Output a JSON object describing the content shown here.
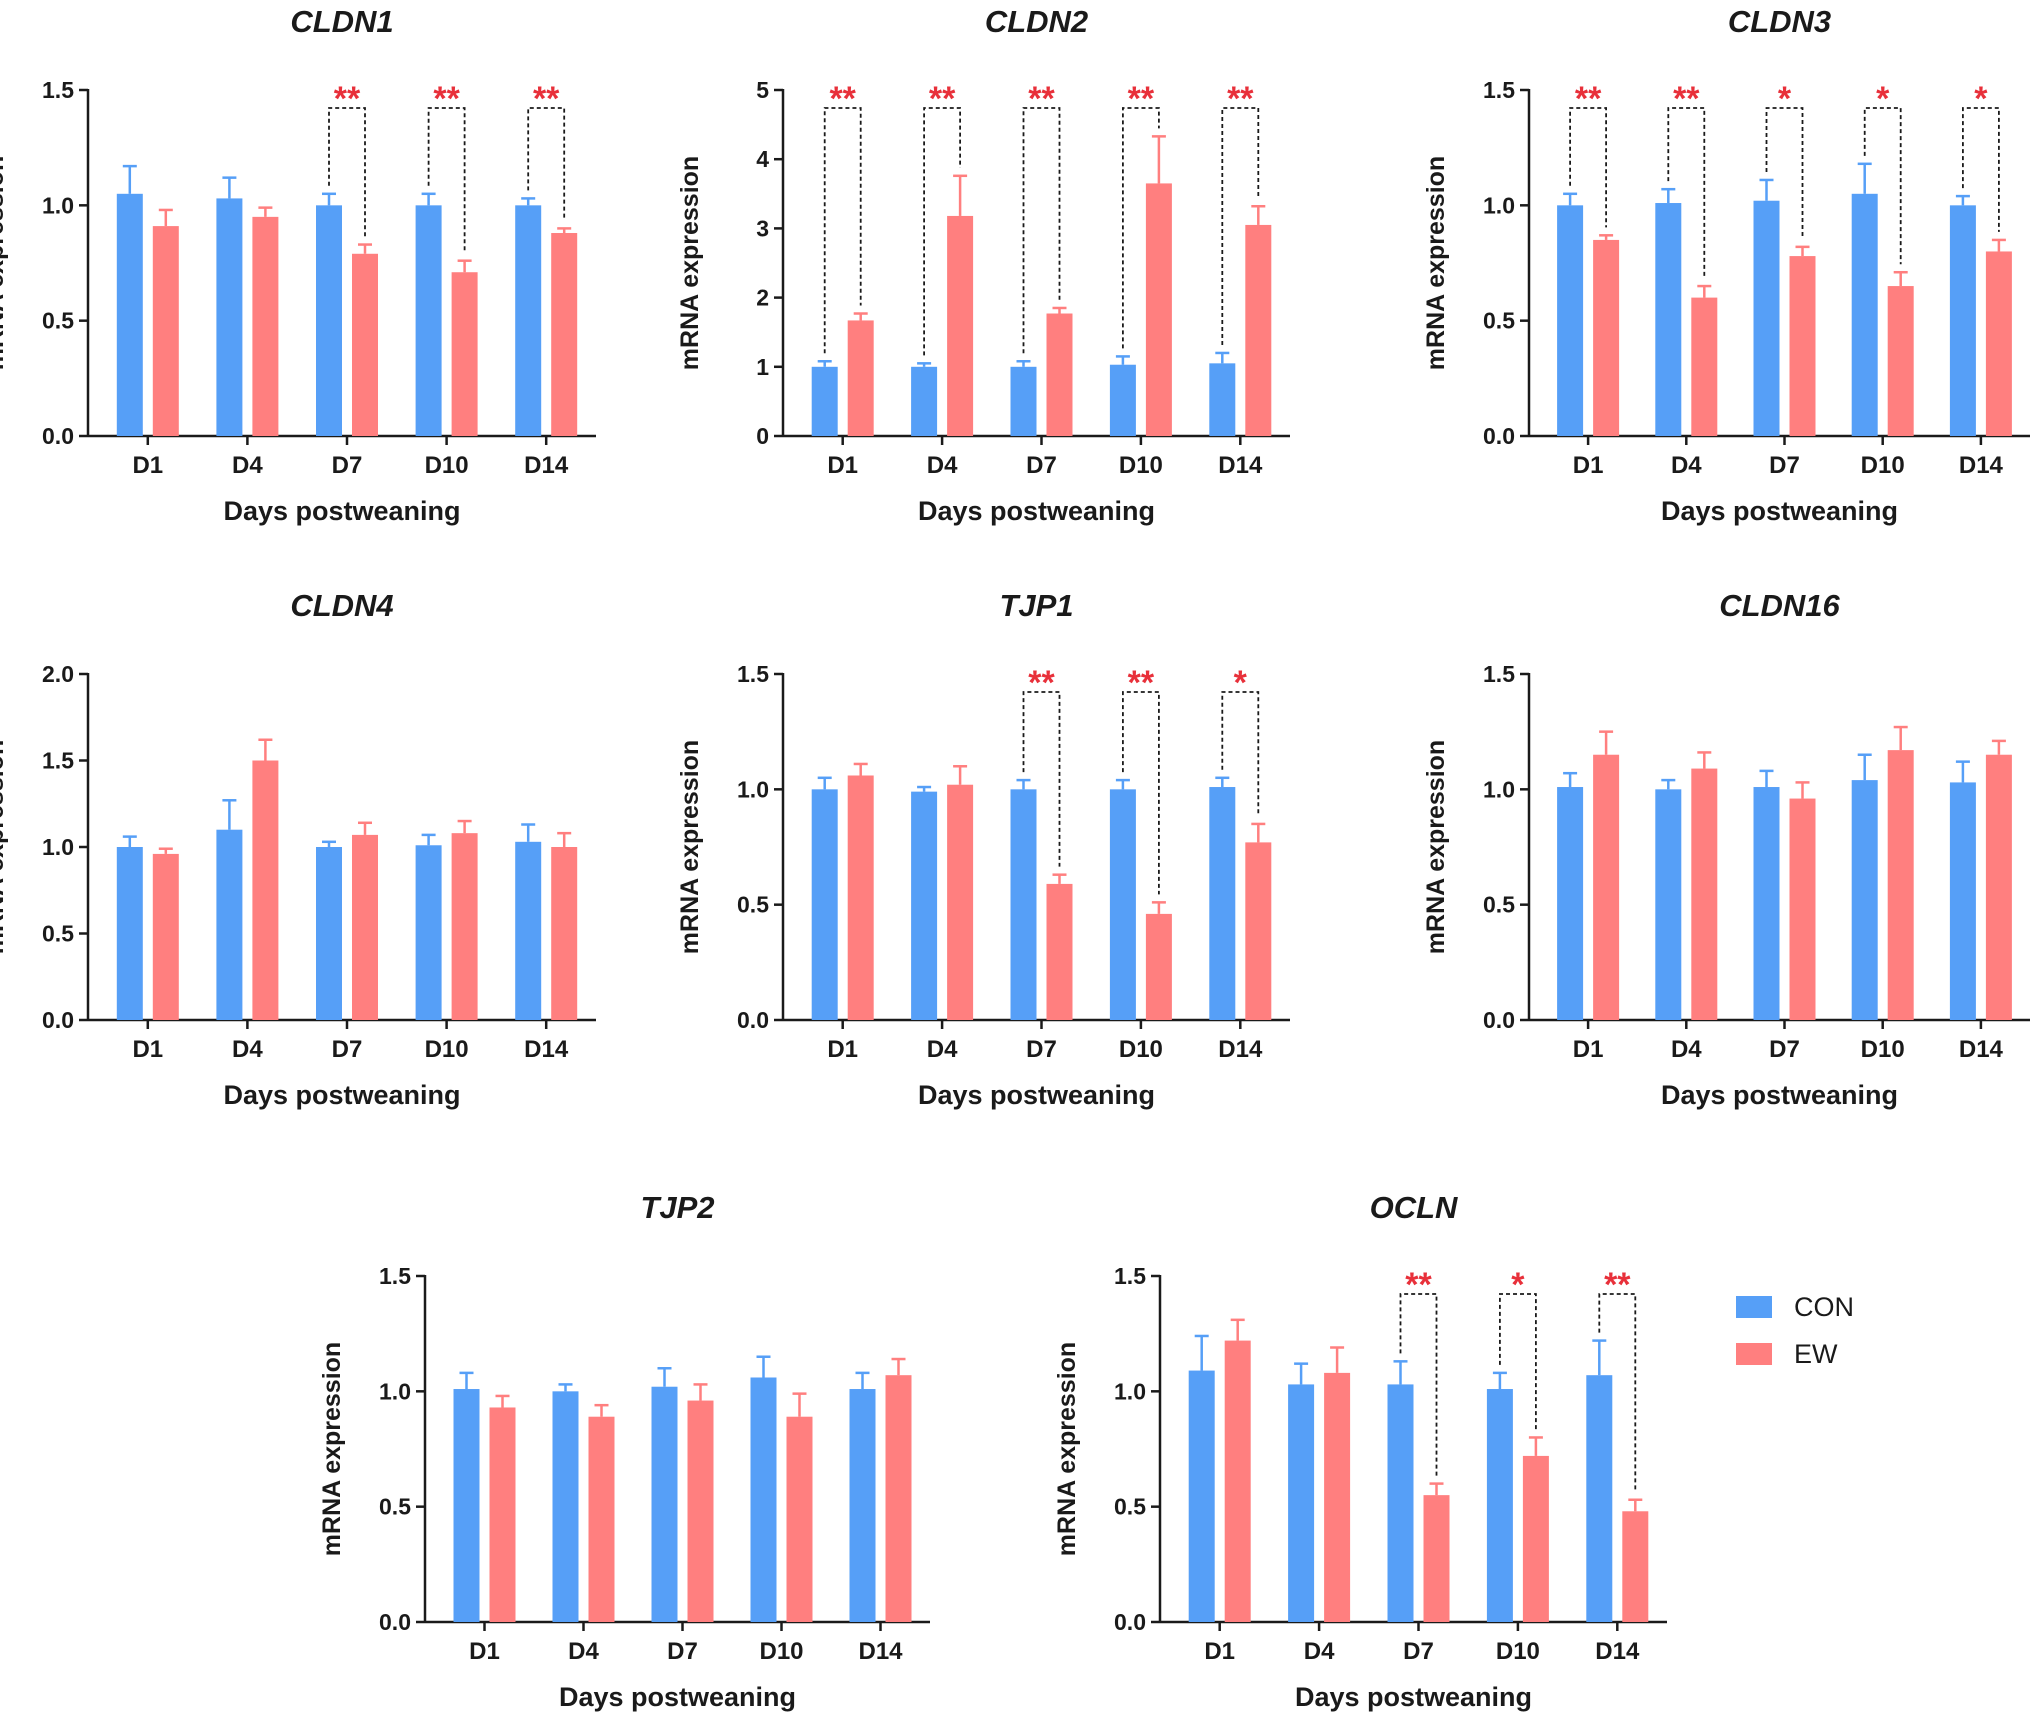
{
  "colors": {
    "con": "#569ff7",
    "ew": "#ff7f7f",
    "star": "#e8303a",
    "axis": "#1a1a1a"
  },
  "legend": {
    "items": [
      {
        "key": "con",
        "label": "CON"
      },
      {
        "key": "ew",
        "label": "EW"
      }
    ]
  },
  "chart_data": [
    {
      "type": "bar",
      "title": "CLDN1",
      "xlabel": "Days postweaning",
      "ylabel": "mRNA expression",
      "categories": [
        "D1",
        "D4",
        "D7",
        "D10",
        "D14"
      ],
      "ylim": [
        0,
        1.5
      ],
      "yticks": [
        "0.0",
        "0.5",
        "1.0",
        "1.5"
      ],
      "series": [
        {
          "name": "CON",
          "values": [
            1.05,
            1.03,
            1.0,
            1.0,
            1.0
          ],
          "errors": [
            0.12,
            0.09,
            0.05,
            0.05,
            0.03
          ]
        },
        {
          "name": "EW",
          "values": [
            0.91,
            0.95,
            0.79,
            0.71,
            0.88
          ],
          "errors": [
            0.07,
            0.04,
            0.04,
            0.05,
            0.02
          ]
        }
      ],
      "significance": [
        "",
        "",
        "**",
        "**",
        "**"
      ]
    },
    {
      "type": "bar",
      "title": "CLDN2",
      "xlabel": "Days postweaning",
      "ylabel": "mRNA expression",
      "categories": [
        "D1",
        "D4",
        "D7",
        "D10",
        "D14"
      ],
      "ylim": [
        0,
        5
      ],
      "yticks": [
        "0",
        "1",
        "2",
        "3",
        "4",
        "5"
      ],
      "series": [
        {
          "name": "CON",
          "values": [
            1.0,
            1.0,
            1.0,
            1.03,
            1.05
          ],
          "errors": [
            0.08,
            0.05,
            0.08,
            0.12,
            0.15
          ]
        },
        {
          "name": "EW",
          "values": [
            1.67,
            3.18,
            1.77,
            3.65,
            3.05
          ],
          "errors": [
            0.1,
            0.58,
            0.08,
            0.68,
            0.27
          ]
        }
      ],
      "significance": [
        "**",
        "**",
        "**",
        "**",
        "**"
      ]
    },
    {
      "type": "bar",
      "title": "CLDN3",
      "xlabel": "Days postweaning",
      "ylabel": "mRNA expression",
      "categories": [
        "D1",
        "D4",
        "D7",
        "D10",
        "D14"
      ],
      "ylim": [
        0,
        1.5
      ],
      "yticks": [
        "0.0",
        "0.5",
        "1.0",
        "1.5"
      ],
      "series": [
        {
          "name": "CON",
          "values": [
            1.0,
            1.01,
            1.02,
            1.05,
            1.0
          ],
          "errors": [
            0.05,
            0.06,
            0.09,
            0.13,
            0.04
          ]
        },
        {
          "name": "EW",
          "values": [
            0.85,
            0.6,
            0.78,
            0.65,
            0.8
          ],
          "errors": [
            0.02,
            0.05,
            0.04,
            0.06,
            0.05
          ]
        }
      ],
      "significance": [
        "**",
        "**",
        "*",
        "*",
        "*"
      ]
    },
    {
      "type": "bar",
      "title": "CLDN4",
      "xlabel": "Days postweaning",
      "ylabel": "mRNA expression",
      "categories": [
        "D1",
        "D4",
        "D7",
        "D10",
        "D14"
      ],
      "ylim": [
        0,
        2.0
      ],
      "yticks": [
        "0.0",
        "0.5",
        "1.0",
        "1.5",
        "2.0"
      ],
      "series": [
        {
          "name": "CON",
          "values": [
            1.0,
            1.1,
            1.0,
            1.01,
            1.03
          ],
          "errors": [
            0.06,
            0.17,
            0.03,
            0.06,
            0.1
          ]
        },
        {
          "name": "EW",
          "values": [
            0.96,
            1.5,
            1.07,
            1.08,
            1.0
          ],
          "errors": [
            0.03,
            0.12,
            0.07,
            0.07,
            0.08
          ]
        }
      ],
      "significance": [
        "",
        "",
        "",
        "",
        ""
      ]
    },
    {
      "type": "bar",
      "title": "TJP1",
      "xlabel": "Days postweaning",
      "ylabel": "mRNA expression",
      "categories": [
        "D1",
        "D4",
        "D7",
        "D10",
        "D14"
      ],
      "ylim": [
        0,
        1.5
      ],
      "yticks": [
        "0.0",
        "0.5",
        "1.0",
        "1.5"
      ],
      "series": [
        {
          "name": "CON",
          "values": [
            1.0,
            0.99,
            1.0,
            1.0,
            1.01
          ],
          "errors": [
            0.05,
            0.02,
            0.04,
            0.04,
            0.04
          ]
        },
        {
          "name": "EW",
          "values": [
            1.06,
            1.02,
            0.59,
            0.46,
            0.77
          ],
          "errors": [
            0.05,
            0.08,
            0.04,
            0.05,
            0.08
          ]
        }
      ],
      "significance": [
        "",
        "",
        "**",
        "**",
        "*"
      ]
    },
    {
      "type": "bar",
      "title": "CLDN16",
      "xlabel": "Days postweaning",
      "ylabel": "mRNA expression",
      "categories": [
        "D1",
        "D4",
        "D7",
        "D10",
        "D14"
      ],
      "ylim": [
        0,
        1.5
      ],
      "yticks": [
        "0.0",
        "0.5",
        "1.0",
        "1.5"
      ],
      "series": [
        {
          "name": "CON",
          "values": [
            1.01,
            1.0,
            1.01,
            1.04,
            1.03
          ],
          "errors": [
            0.06,
            0.04,
            0.07,
            0.11,
            0.09
          ]
        },
        {
          "name": "EW",
          "values": [
            1.15,
            1.09,
            0.96,
            1.17,
            1.15
          ],
          "errors": [
            0.1,
            0.07,
            0.07,
            0.1,
            0.06
          ]
        }
      ],
      "significance": [
        "",
        "",
        "",
        "",
        ""
      ]
    },
    {
      "type": "bar",
      "title": "TJP2",
      "xlabel": "Days postweaning",
      "ylabel": "mRNA expression",
      "categories": [
        "D1",
        "D4",
        "D7",
        "D10",
        "D14"
      ],
      "ylim": [
        0,
        1.5
      ],
      "yticks": [
        "0.0",
        "0.5",
        "1.0",
        "1.5"
      ],
      "series": [
        {
          "name": "CON",
          "values": [
            1.01,
            1.0,
            1.02,
            1.06,
            1.01
          ],
          "errors": [
            0.07,
            0.03,
            0.08,
            0.09,
            0.07
          ]
        },
        {
          "name": "EW",
          "values": [
            0.93,
            0.89,
            0.96,
            0.89,
            1.07
          ],
          "errors": [
            0.05,
            0.05,
            0.07,
            0.1,
            0.07
          ]
        }
      ],
      "significance": [
        "",
        "",
        "",
        "",
        ""
      ]
    },
    {
      "type": "bar",
      "title": "OCLN",
      "xlabel": "Days postweaning",
      "ylabel": "mRNA expression",
      "categories": [
        "D1",
        "D4",
        "D7",
        "D10",
        "D14"
      ],
      "ylim": [
        0,
        1.5
      ],
      "yticks": [
        "0.0",
        "0.5",
        "1.0",
        "1.5"
      ],
      "series": [
        {
          "name": "CON",
          "values": [
            1.09,
            1.03,
            1.03,
            1.01,
            1.07
          ],
          "errors": [
            0.15,
            0.09,
            0.1,
            0.07,
            0.15
          ]
        },
        {
          "name": "EW",
          "values": [
            1.22,
            1.08,
            0.55,
            0.72,
            0.48
          ],
          "errors": [
            0.09,
            0.11,
            0.05,
            0.08,
            0.05
          ]
        }
      ],
      "significance": [
        "",
        "",
        "**",
        "*",
        "**"
      ]
    }
  ]
}
